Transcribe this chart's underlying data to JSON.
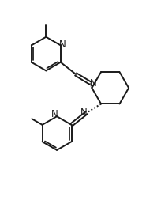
{
  "bg_color": "#ffffff",
  "line_color": "#1a1a1a",
  "line_width": 1.4,
  "font_size": 8.5,
  "figsize": [
    2.04,
    2.58
  ],
  "dpi": 100,
  "xlim": [
    0,
    10
  ],
  "ylim": [
    0,
    12.7
  ]
}
